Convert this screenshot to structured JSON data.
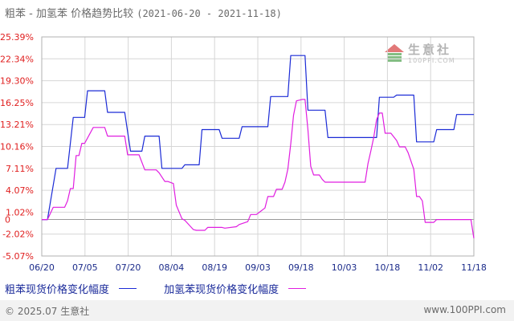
{
  "title": {
    "main": "粗苯 - 加氢苯 价格趋势比较",
    "range": "(2021-06-20 - 2021-11-18)"
  },
  "legend": [
    {
      "label": "粗苯现货价格变化幅度",
      "color": "#1b2bd6"
    },
    {
      "label": "加氢苯现货价格变化幅度",
      "color": "#e01ee0"
    }
  ],
  "footer": {
    "copyright": "© 2025.07 生意社",
    "site": "www.100PPI.com"
  },
  "watermark": {
    "brand": "生意社",
    "domain": "100PPI.COM"
  },
  "chart_data": {
    "type": "line",
    "title": "粗苯 - 加氢苯 价格趋势比较",
    "xlabel": "",
    "ylabel": "",
    "x_ticks": [
      "06/20",
      "07/05",
      "07/20",
      "08/04",
      "08/19",
      "09/03",
      "09/18",
      "10/03",
      "10/18",
      "11/02",
      "11/18"
    ],
    "y_ticks": [
      "25.39%",
      "22.34%",
      "19.30%",
      "16.25%",
      "13.21%",
      "10.16%",
      "7.11%",
      "4.07%",
      "1.02%",
      "-2.02%",
      "-5.07%"
    ],
    "zero_label": "0",
    "ylim": [
      -5.07,
      25.39
    ],
    "xlim": [
      "2021-06-20",
      "2021-11-18"
    ],
    "grid": true,
    "legend_position": "bottom",
    "series": [
      {
        "name": "粗苯现货价格变化幅度",
        "color": "#1b2bd6",
        "x": [
          "2021-06-20",
          "2021-06-22",
          "2021-06-25",
          "2021-06-26",
          "2021-06-29",
          "2021-07-01",
          "2021-07-02",
          "2021-07-05",
          "2021-07-06",
          "2021-07-12",
          "2021-07-13",
          "2021-07-18",
          "2021-07-19",
          "2021-07-21",
          "2021-07-25",
          "2021-07-26",
          "2021-07-31",
          "2021-08-01",
          "2021-08-08",
          "2021-08-09",
          "2021-08-14",
          "2021-08-15",
          "2021-08-21",
          "2021-08-22",
          "2021-08-28",
          "2021-08-29",
          "2021-08-31",
          "2021-09-01",
          "2021-09-07",
          "2021-09-08",
          "2021-09-14",
          "2021-09-15",
          "2021-09-20",
          "2021-09-21",
          "2021-09-27",
          "2021-09-28",
          "2021-10-15",
          "2021-10-16",
          "2021-10-21",
          "2021-10-22",
          "2021-10-28",
          "2021-10-29",
          "2021-11-04",
          "2021-11-05",
          "2021-11-11",
          "2021-11-12",
          "2021-11-18"
        ],
        "values": [
          0.0,
          0.0,
          7.11,
          7.11,
          7.11,
          14.2,
          14.2,
          14.2,
          17.9,
          17.9,
          14.9,
          14.9,
          14.9,
          9.5,
          9.5,
          11.6,
          11.6,
          7.11,
          7.11,
          7.6,
          7.6,
          12.5,
          12.5,
          11.3,
          11.3,
          12.9,
          12.9,
          12.9,
          12.9,
          17.1,
          17.1,
          22.8,
          22.8,
          15.2,
          15.2,
          11.4,
          11.4,
          17.0,
          17.0,
          17.3,
          17.3,
          10.8,
          10.8,
          12.5,
          12.5,
          14.6,
          14.6
        ]
      },
      {
        "name": "加氢苯现货价格变化幅度",
        "color": "#e01ee0",
        "x": [
          "2021-06-20",
          "2021-06-22",
          "2021-06-24",
          "2021-06-25",
          "2021-06-28",
          "2021-06-29",
          "2021-06-30",
          "2021-07-01",
          "2021-07-02",
          "2021-07-03",
          "2021-07-04",
          "2021-07-05",
          "2021-07-08",
          "2021-07-09",
          "2021-07-12",
          "2021-07-13",
          "2021-07-15",
          "2021-07-16",
          "2021-07-19",
          "2021-07-20",
          "2021-07-23",
          "2021-07-24",
          "2021-07-26",
          "2021-07-27",
          "2021-07-30",
          "2021-07-31",
          "2021-08-02",
          "2021-08-03",
          "2021-08-05",
          "2021-08-06",
          "2021-08-08",
          "2021-08-09",
          "2021-08-12",
          "2021-08-13",
          "2021-08-16",
          "2021-08-17",
          "2021-08-22",
          "2021-08-23",
          "2021-08-27",
          "2021-08-28",
          "2021-08-31",
          "2021-09-01",
          "2021-09-03",
          "2021-09-04",
          "2021-09-06",
          "2021-09-07",
          "2021-09-09",
          "2021-09-10",
          "2021-09-12",
          "2021-09-13",
          "2021-09-14",
          "2021-09-15",
          "2021-09-16",
          "2021-09-17",
          "2021-09-19",
          "2021-09-20",
          "2021-09-21",
          "2021-09-22",
          "2021-09-23",
          "2021-09-25",
          "2021-09-26",
          "2021-09-27",
          "2021-09-28",
          "2021-09-29",
          "2021-10-10",
          "2021-10-11",
          "2021-10-12",
          "2021-10-13",
          "2021-10-14",
          "2021-10-15",
          "2021-10-16",
          "2021-10-17",
          "2021-10-18",
          "2021-10-19",
          "2021-10-20",
          "2021-10-22",
          "2021-10-23",
          "2021-10-25",
          "2021-10-26",
          "2021-10-28",
          "2021-10-29",
          "2021-10-30",
          "2021-10-31",
          "2021-11-01",
          "2021-11-02",
          "2021-11-04",
          "2021-11-05",
          "2021-11-11",
          "2021-11-12",
          "2021-11-17",
          "2021-11-18"
        ],
        "values": [
          0.0,
          0.0,
          1.7,
          1.7,
          1.7,
          2.6,
          4.3,
          4.3,
          8.9,
          8.9,
          10.6,
          10.6,
          12.8,
          12.8,
          12.8,
          11.6,
          11.6,
          11.6,
          11.6,
          9.0,
          9.0,
          9.0,
          6.9,
          6.9,
          6.9,
          6.5,
          5.3,
          5.3,
          5.0,
          2.0,
          0.1,
          -0.1,
          -1.4,
          -1.5,
          -1.5,
          -1.1,
          -1.1,
          -1.2,
          -1.0,
          -0.7,
          -0.3,
          0.7,
          0.7,
          1.0,
          1.6,
          3.2,
          3.2,
          4.2,
          4.2,
          5.2,
          7.0,
          10.5,
          14.5,
          16.5,
          16.7,
          16.7,
          12.5,
          7.4,
          6.2,
          6.2,
          5.6,
          5.2,
          5.2,
          5.2,
          5.2,
          5.2,
          7.8,
          9.5,
          11.4,
          13.9,
          14.8,
          14.8,
          12.0,
          12.0,
          12.0,
          11.0,
          10.1,
          10.1,
          9.3,
          7.0,
          3.2,
          3.2,
          2.6,
          -0.4,
          -0.4,
          -0.4,
          0.0,
          0.0,
          0.0,
          0.0,
          -2.6
        ]
      }
    ]
  }
}
